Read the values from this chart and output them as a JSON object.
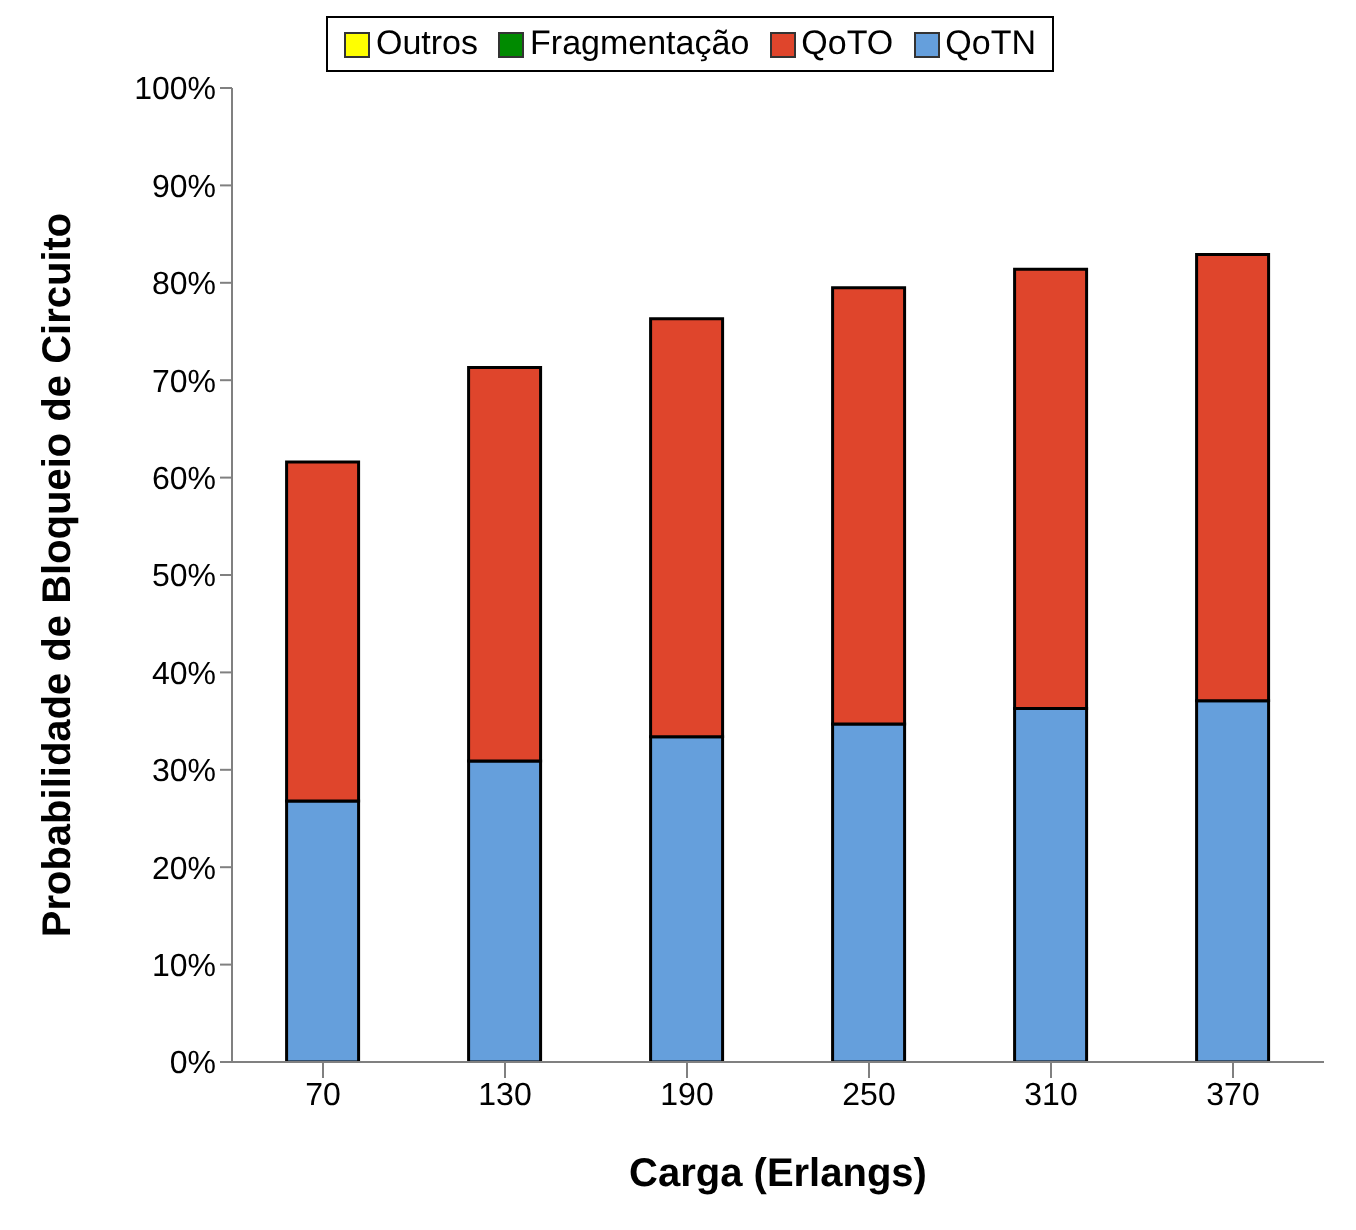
{
  "chart_data": {
    "type": "bar",
    "stacked": true,
    "xlabel": "Carga (Erlangs)",
    "ylabel": "Probabilidade de Bloqueio de Circuito",
    "categories": [
      "70",
      "130",
      "190",
      "250",
      "310",
      "370"
    ],
    "series": [
      {
        "name": "QoTN",
        "color": "#659fdc",
        "values": [
          26.8,
          30.9,
          33.4,
          34.7,
          36.3,
          37.1
        ]
      },
      {
        "name": "QoTO",
        "color": "#df452c",
        "values": [
          34.8,
          40.4,
          42.9,
          44.8,
          45.1,
          45.8
        ]
      },
      {
        "name": "Fragmentação",
        "color": "#008a00",
        "values": [
          0,
          0,
          0,
          0,
          0,
          0
        ]
      },
      {
        "name": "Outros",
        "color": "#ffff00",
        "values": [
          0,
          0,
          0,
          0,
          0,
          0
        ]
      }
    ],
    "ylim": [
      0,
      100
    ],
    "yticks": [
      {
        "value": 0,
        "label": "0%"
      },
      {
        "value": 10,
        "label": "10%"
      },
      {
        "value": 20,
        "label": "20%"
      },
      {
        "value": 30,
        "label": "30%"
      },
      {
        "value": 40,
        "label": "40%"
      },
      {
        "value": 50,
        "label": "50%"
      },
      {
        "value": 60,
        "label": "60%"
      },
      {
        "value": 70,
        "label": "70%"
      },
      {
        "value": 80,
        "label": "80%"
      },
      {
        "value": 90,
        "label": "90%"
      },
      {
        "value": 100,
        "label": "100%"
      }
    ],
    "legend": "top"
  }
}
